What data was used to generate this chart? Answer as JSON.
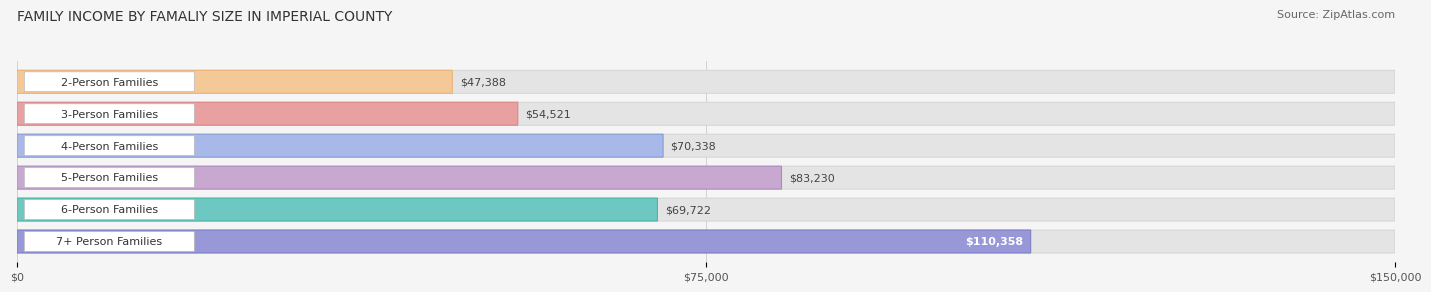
{
  "title": "FAMILY INCOME BY FAMALIY SIZE IN IMPERIAL COUNTY",
  "source": "Source: ZipAtlas.com",
  "categories": [
    "2-Person Families",
    "3-Person Families",
    "4-Person Families",
    "5-Person Families",
    "6-Person Families",
    "7+ Person Families"
  ],
  "values": [
    47388,
    54521,
    70338,
    83230,
    69722,
    110358
  ],
  "bar_colors": [
    "#f5c897",
    "#e8a0a0",
    "#a8b8e8",
    "#c8a8d0",
    "#6cc8c0",
    "#9898d8"
  ],
  "bar_edge_colors": [
    "#e8b070",
    "#d88080",
    "#8098d0",
    "#a888b8",
    "#48b0a8",
    "#7878c0"
  ],
  "value_labels": [
    "$47,388",
    "$54,521",
    "$70,338",
    "$83,230",
    "$69,722",
    "$110,358"
  ],
  "value_inside": [
    false,
    false,
    false,
    false,
    false,
    true
  ],
  "xlim": [
    0,
    150000
  ],
  "xticks": [
    0,
    75000,
    150000
  ],
  "xticklabels": [
    "$0",
    "$75,000",
    "$150,000"
  ],
  "background_color": "#f5f5f5",
  "title_fontsize": 10,
  "source_fontsize": 8,
  "label_fontsize": 8,
  "value_fontsize": 8,
  "tick_fontsize": 8
}
